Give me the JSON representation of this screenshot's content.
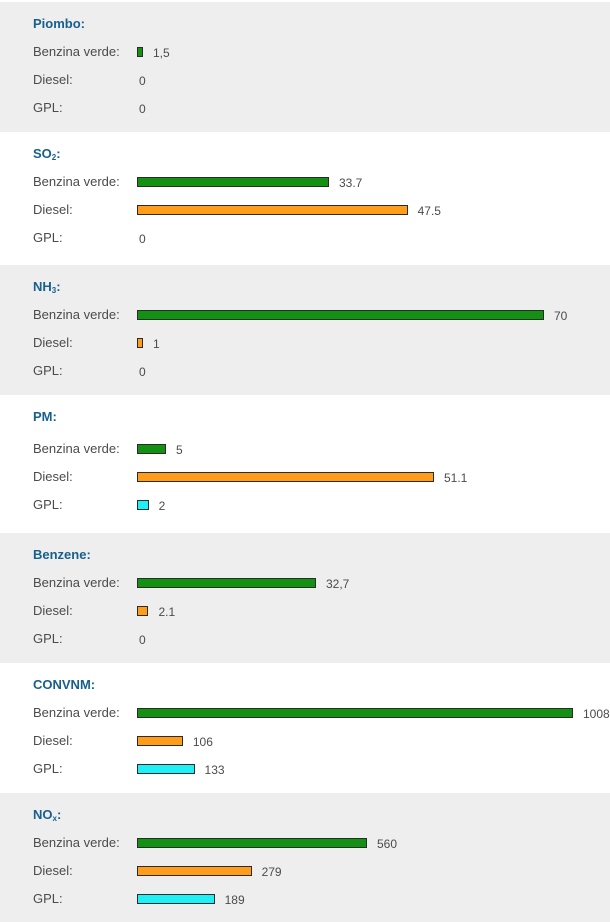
{
  "chart_data": [
    {
      "type": "bar",
      "orientation": "horizontal",
      "title": "Piombo:",
      "categories": [
        "Benzina verde:",
        "Diesel:",
        "GPL:"
      ],
      "values": [
        1.5,
        0,
        0
      ],
      "value_labels": [
        "1,5",
        "0",
        "0"
      ],
      "colors": [
        "#129112",
        "#ff9d1a",
        "#1ff0f5"
      ]
    },
    {
      "type": "bar",
      "orientation": "horizontal",
      "title": "SO",
      "title_sub": "2",
      "title_suffix": ":",
      "categories": [
        "Benzina verde:",
        "Diesel:",
        "GPL:"
      ],
      "values": [
        33.7,
        47.5,
        0
      ],
      "value_labels": [
        "33.7",
        "47.5",
        "0"
      ],
      "colors": [
        "#129112",
        "#ff9d1a",
        "#1ff0f5"
      ]
    },
    {
      "type": "bar",
      "orientation": "horizontal",
      "title": "NH",
      "title_sub": "3",
      "title_suffix": ":",
      "categories": [
        "Benzina verde:",
        "Diesel:",
        "GPL:"
      ],
      "values": [
        70,
        1,
        0
      ],
      "value_labels": [
        "70",
        "1",
        "0"
      ],
      "colors": [
        "#129112",
        "#ff9d1a",
        "#1ff0f5"
      ]
    },
    {
      "type": "bar",
      "orientation": "horizontal",
      "title": "PM:",
      "categories": [
        "Benzina verde:",
        "Diesel:",
        "GPL:"
      ],
      "values": [
        5,
        51.1,
        2
      ],
      "value_labels": [
        "5",
        "51.1",
        "2"
      ],
      "colors": [
        "#129112",
        "#ff9d1a",
        "#1ff0f5"
      ]
    },
    {
      "type": "bar",
      "orientation": "horizontal",
      "title": "Benzene:",
      "categories": [
        "Benzina verde:",
        "Diesel:",
        "GPL:"
      ],
      "values": [
        32.7,
        2.1,
        0
      ],
      "value_labels": [
        "32,7",
        "2.1",
        "0"
      ],
      "colors": [
        "#129112",
        "#ff9d1a",
        "#1ff0f5"
      ]
    },
    {
      "type": "bar",
      "orientation": "horizontal",
      "title": "CONVNM:",
      "categories": [
        "Benzina verde:",
        "Diesel:",
        "GPL:"
      ],
      "values": [
        1008,
        106,
        133
      ],
      "value_labels": [
        "1008",
        "106",
        "133"
      ],
      "colors": [
        "#129112",
        "#ff9d1a",
        "#1ff0f5"
      ]
    },
    {
      "type": "bar",
      "orientation": "horizontal",
      "title": "NO",
      "title_sub": "x",
      "title_suffix": ":",
      "categories": [
        "Benzina verde:",
        "Diesel:",
        "GPL:"
      ],
      "values": [
        560,
        279,
        189
      ],
      "value_labels": [
        "560",
        "279",
        "189"
      ],
      "colors": [
        "#129112",
        "#ff9d1a",
        "#1ff0f5"
      ]
    }
  ],
  "theme": {
    "title_color": "#17608e",
    "text_color": "#4b4b4b",
    "shaded_panel_bg": "#eeeeee",
    "plain_panel_bg": "#ffffff"
  }
}
